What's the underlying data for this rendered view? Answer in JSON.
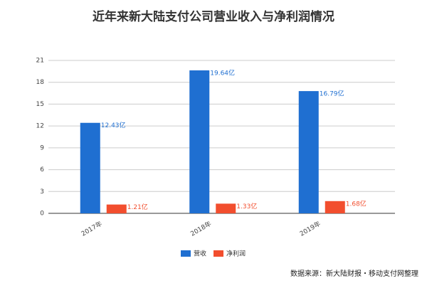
{
  "chart_data": {
    "type": "bar",
    "title": "近年来新大陆支付公司营业收入与净利润情况",
    "categories": [
      "2017年",
      "2018年",
      "2019年"
    ],
    "series": [
      {
        "name": "营收",
        "color": "#1f6fd1",
        "values": [
          12.43,
          19.64,
          16.79
        ],
        "value_labels": [
          "12.43亿",
          "19.64亿",
          "16.79亿"
        ]
      },
      {
        "name": "净利润",
        "color": "#f24e2e",
        "values": [
          1.21,
          1.33,
          1.68
        ],
        "value_labels": [
          "1.21亿",
          "1.33亿",
          "1.68亿"
        ]
      }
    ],
    "ylim": [
      0,
      21
    ],
    "yticks": [
      0,
      3,
      6,
      9,
      12,
      15,
      18,
      21
    ],
    "grid": true,
    "legend": "bottom",
    "source": "数据来源：新大陆财报・移动支付网整理"
  }
}
